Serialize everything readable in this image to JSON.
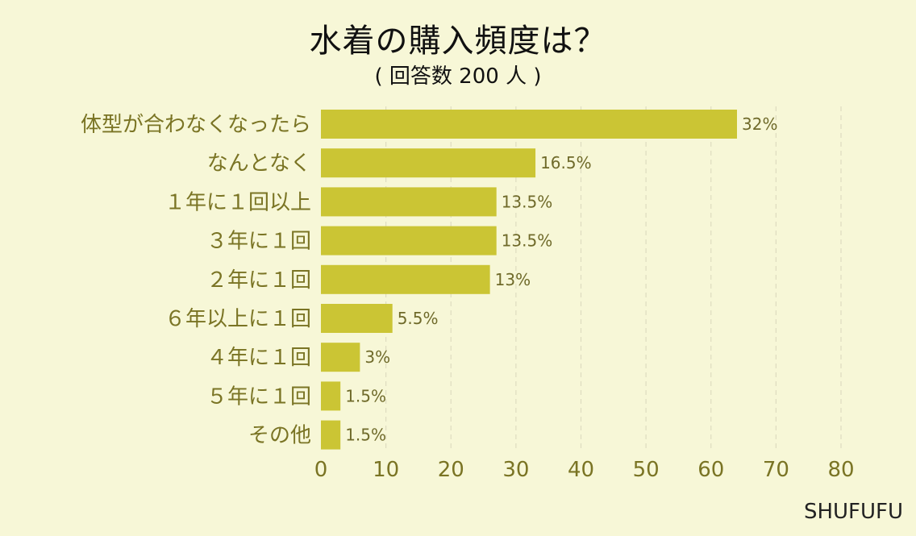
{
  "chart_data": {
    "type": "bar",
    "orientation": "horizontal",
    "title": "水着の購入頻度は？",
    "subtitle": "( 回答数 200 人 )",
    "categories": [
      "体型が合わなくなったら",
      "なんとなく",
      "１年に１回以上",
      "３年に１回",
      "２年に１回",
      "６年以上に１回",
      "４年に１回",
      "５年に１回",
      "その他"
    ],
    "values": [
      64,
      33,
      27,
      27,
      26,
      11,
      6,
      3,
      3
    ],
    "value_labels": [
      "32%",
      "16.5%",
      "13.5%",
      "13.5%",
      "13%",
      "5.5%",
      "3%",
      "1.5%",
      "1.5%"
    ],
    "xlim": [
      0,
      80
    ],
    "xticks": [
      "0",
      "10",
      "20",
      "30",
      "40",
      "50",
      "60",
      "70",
      "80"
    ],
    "grid": "vertical dashed",
    "colors": {
      "bar": "#cbc534",
      "background": "#f7f7d7",
      "label": "#7a7424"
    }
  },
  "brand": "SHUFUFU"
}
